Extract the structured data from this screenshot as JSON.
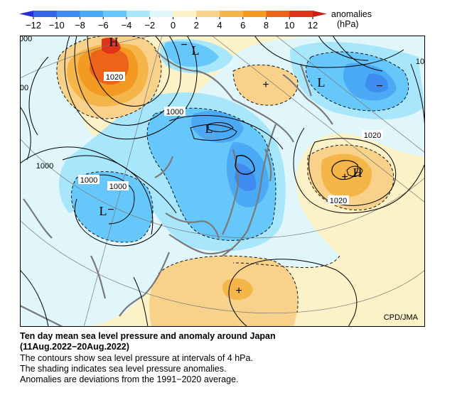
{
  "colorbar": {
    "ticks": [
      "−12",
      "−10",
      "−8",
      "−6",
      "−4",
      "−2",
      "0",
      "2",
      "4",
      "6",
      "8",
      "10",
      "12"
    ],
    "colors": [
      "#2b2bd8",
      "#3366e6",
      "#3f8cf0",
      "#4aaaf5",
      "#66c8fa",
      "#a8e6fc",
      "#e0f6fb",
      "#fbf2c8",
      "#f8d28a",
      "#f4b648",
      "#f29a22",
      "#ec6418",
      "#e0341a",
      "#c8201a"
    ],
    "unit_line1": "anomalies",
    "unit_line2": "(hPa)"
  },
  "map": {
    "credit": "CPD/JMA",
    "contour_labels": {
      "c1020_nw": "1020",
      "c1000_center": "1000",
      "c1020_east": "1020",
      "c1020_se": "1020",
      "c1000_west": "1000",
      "c1000_w2": "1000",
      "c1000_w3": "1000",
      "c_edge_tl": "000",
      "c_edge_l": "00",
      "c_edge_r": "10"
    },
    "markers": {
      "high_nw": "H",
      "low_n": "L",
      "low_ne": "L",
      "low_center": "L",
      "low_west": "L",
      "high_east": "H",
      "minus_n": "−",
      "minus_ne": "−",
      "minus_w": "−",
      "plus_center": "+",
      "plus_east": "+",
      "plus_south": "+"
    }
  },
  "caption": {
    "title": "Ten day mean sea level pressure and anomaly around Japan",
    "period": "(11Aug.2022−20Aug.2022)",
    "line1": "The contours show sea level pressure at intervals of 4 hPa.",
    "line2": "The shading indicates sea level pressure anomalies.",
    "line3": "Anomalies are deviations from the 1991−2020 average."
  }
}
